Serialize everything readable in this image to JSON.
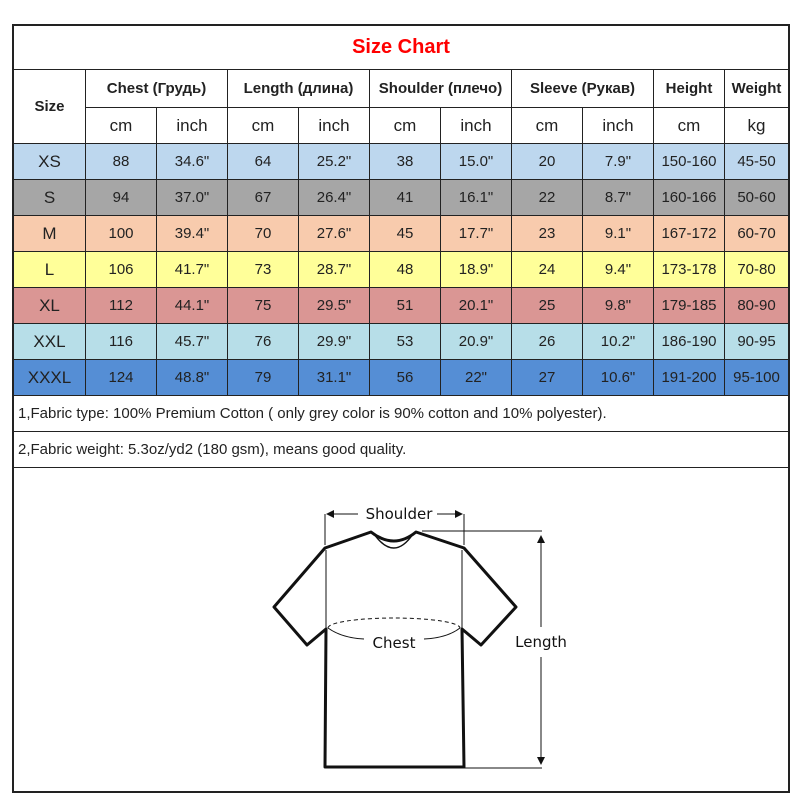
{
  "title": "Size Chart",
  "headers": {
    "size": "Size",
    "groups": [
      "Chest  (Грудь)",
      "Length (длина)",
      "Shoulder (плечо)",
      "Sleeve (Рукав)",
      "Height",
      "Weight"
    ],
    "units": [
      "cm",
      "inch",
      "cm",
      "inch",
      "cm",
      "inch",
      "cm",
      "inch",
      "cm",
      "kg"
    ]
  },
  "rows": [
    {
      "size": "XS",
      "values": [
        "88",
        "34.6\"",
        "64",
        "25.2\"",
        "38",
        "15.0\"",
        "20",
        "7.9\"",
        "150-160",
        "45-50"
      ],
      "color": "#bdd7ee"
    },
    {
      "size": "S",
      "values": [
        "94",
        "37.0\"",
        "67",
        "26.4\"",
        "41",
        "16.1\"",
        "22",
        "8.7\"",
        "160-166",
        "50-60"
      ],
      "color": "#a6a6a6"
    },
    {
      "size": "M",
      "values": [
        "100",
        "39.4\"",
        "70",
        "27.6\"",
        "45",
        "17.7\"",
        "23",
        "9.1\"",
        "167-172",
        "60-70"
      ],
      "color": "#f8cbad"
    },
    {
      "size": "L",
      "values": [
        "106",
        "41.7\"",
        "73",
        "28.7\"",
        "48",
        "18.9\"",
        "24",
        "9.4\"",
        "173-178",
        "70-80"
      ],
      "color": "#ffff99"
    },
    {
      "size": "XL",
      "values": [
        "112",
        "44.1\"",
        "75",
        "29.5\"",
        "51",
        "20.1\"",
        "25",
        "9.8\"",
        "179-185",
        "80-90"
      ],
      "color": "#da9694"
    },
    {
      "size": "XXL",
      "values": [
        "116",
        "45.7\"",
        "76",
        "29.9\"",
        "53",
        "20.9\"",
        "26",
        "10.2\"",
        "186-190",
        "90-95"
      ],
      "color": "#b7dee8"
    },
    {
      "size": "XXXL",
      "values": [
        "124",
        "48.8\"",
        "79",
        "31.1\"",
        "56",
        "22\"",
        "27",
        "10.6\"",
        "191-200",
        "95-100"
      ],
      "color": "#558ed5"
    }
  ],
  "notes": [
    "1,Fabric type: 100% Premium Cotton ( only grey color is 90% cotton and 10% polyester).",
    "2,Fabric weight: 5.3oz/yd2 (180 gsm), means good quality."
  ],
  "diagram": {
    "shoulder": "Shoulder",
    "chest": "Chest",
    "length": "Length"
  }
}
